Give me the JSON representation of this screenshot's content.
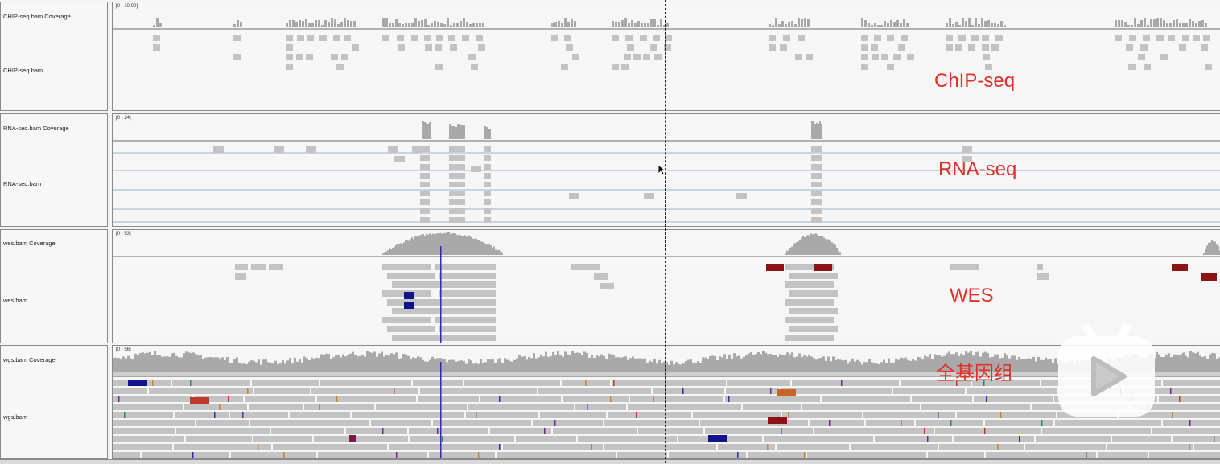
{
  "tracks": [
    {
      "id": "chip",
      "coverage_label": "CHIP-seq.bam Coverage",
      "reads_label": "CHIP-seq.bam",
      "range": "[0 - 10.00]",
      "annotation": "ChIP-seq"
    },
    {
      "id": "rna",
      "coverage_label": "RNA-seq.bam Coverage",
      "reads_label": "RNA-seq.bam",
      "range": "[0 - 24]",
      "annotation": "RNA-seq"
    },
    {
      "id": "wes",
      "coverage_label": "wes.bam Coverage",
      "reads_label": "wes.bam",
      "range": "[0 - 53]",
      "annotation": "WES"
    },
    {
      "id": "wgs",
      "coverage_label": "wgs.bam Coverage",
      "reads_label": "wgs.bam",
      "range": "[0 - 56]",
      "annotation": "全基因组"
    }
  ],
  "colors": {
    "read": "#c3c3c3",
    "coverage": "#a9a9a9",
    "annotation": "#e0302a",
    "mismatch_blue": "#2b2bb5",
    "dark_red": "#8b1414",
    "navy": "#12128c",
    "orange": "#c8662a",
    "splice_line": "#9fb0c8"
  },
  "overlay": {
    "play_icon": "play-button-icon",
    "cursor_icon": "mouse-pointer-icon"
  }
}
